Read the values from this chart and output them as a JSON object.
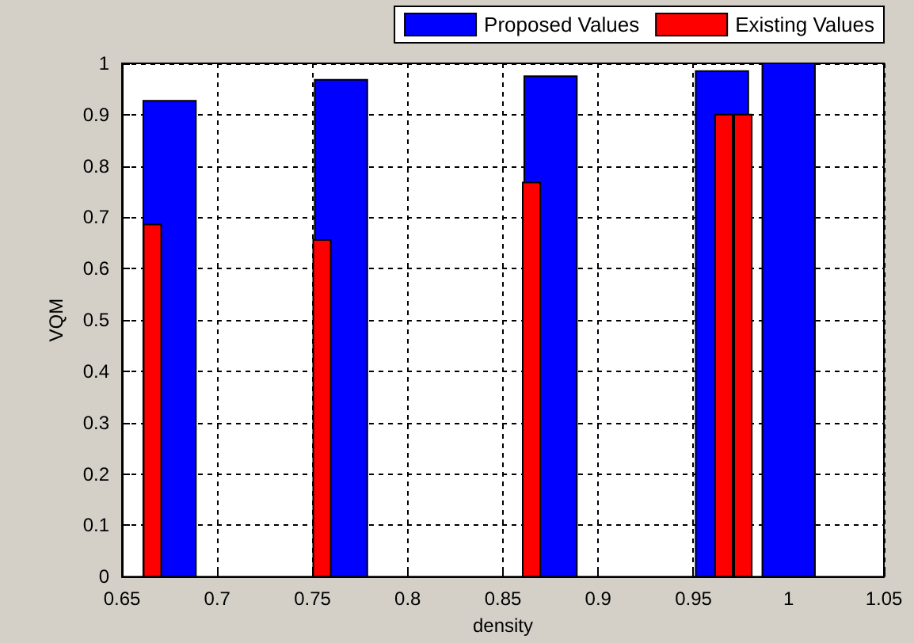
{
  "chart_data": {
    "type": "bar",
    "xlabel": "density",
    "ylabel": "VQM",
    "series": [
      {
        "name": "Proposed Values",
        "color": "#0000ff",
        "x": [
          0.675,
          0.765,
          0.875,
          0.965,
          1.0
        ],
        "values": [
          0.927,
          0.968,
          0.975,
          0.985,
          1.0
        ]
      },
      {
        "name": "Existing Values",
        "color": "#ff0000",
        "x": [
          0.666,
          0.755,
          0.865,
          0.966,
          0.976
        ],
        "values": [
          0.686,
          0.656,
          0.768,
          0.9,
          0.9
        ]
      }
    ],
    "xlim": [
      0.65,
      1.05
    ],
    "xticks": [
      0.65,
      0.7,
      0.75,
      0.8,
      0.85,
      0.9,
      0.95,
      1,
      1.05
    ],
    "ylim": [
      0,
      1
    ],
    "yticks": [
      0,
      0.1,
      0.2,
      0.3,
      0.4,
      0.5,
      0.6,
      0.7,
      0.8,
      0.9,
      1
    ],
    "grid": true,
    "legend": "top"
  }
}
